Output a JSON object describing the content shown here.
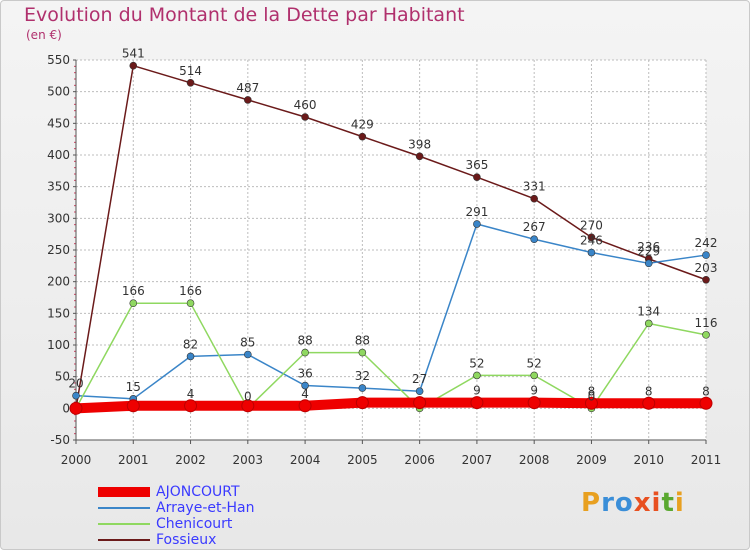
{
  "title": "Evolution du Montant de la Dette par Habitant",
  "unit_label": "(en €)",
  "logo": {
    "text": "Proxiti",
    "letters": [
      "P",
      "r",
      "o",
      "x",
      "i",
      "t",
      "i"
    ],
    "colors": [
      "#e8a020",
      "#3a8ed8",
      "#3a8ed8",
      "#e85020",
      "#e85020",
      "#5aa830",
      "#e8a020"
    ]
  },
  "chart_data": {
    "type": "line",
    "x": [
      "2000",
      "2001",
      "2002",
      "2003",
      "2004",
      "2005",
      "2006",
      "2007",
      "2008",
      "2009",
      "2010",
      "2011"
    ],
    "ylim": [
      -50,
      550
    ],
    "yticks": [
      -50,
      0,
      50,
      100,
      150,
      200,
      250,
      300,
      350,
      400,
      450,
      500,
      550
    ],
    "ytick_labels": [
      "-50",
      "0",
      "50",
      "100",
      "150",
      "200",
      "250",
      "300",
      "350",
      "400",
      "450",
      "500",
      "550"
    ],
    "grid": true,
    "legend_position": "bottom-left",
    "series": [
      {
        "name": "AJONCOURT",
        "color": "#ee0000",
        "values": [
          0,
          4,
          4,
          4,
          4,
          9,
          9,
          9,
          9,
          8,
          8,
          8
        ],
        "labels": [
          "",
          "",
          "4",
          "",
          "4",
          "",
          "",
          "9",
          "9",
          "8",
          "8",
          "8"
        ]
      },
      {
        "name": "Arraye-et-Han",
        "color": "#3a85c8",
        "values": [
          20,
          15,
          82,
          85,
          36,
          32,
          27,
          291,
          267,
          246,
          229,
          242
        ],
        "labels": [
          "20",
          "15",
          "82",
          "85",
          "36",
          "32",
          "27",
          "291",
          "267",
          "246",
          "229",
          "242"
        ]
      },
      {
        "name": "Chenicourt",
        "color": "#8fd860",
        "values": [
          0,
          166,
          166,
          0,
          88,
          88,
          0,
          52,
          52,
          0,
          134,
          116
        ],
        "labels": [
          "",
          "166",
          "166",
          "0",
          "88",
          "88",
          "",
          "52",
          "52",
          "0",
          "134",
          "116"
        ]
      },
      {
        "name": "Fossieux",
        "color": "#6b1a1a",
        "values": [
          0,
          541,
          514,
          487,
          460,
          429,
          398,
          365,
          331,
          270,
          236,
          203
        ],
        "labels": [
          "",
          "541",
          "514",
          "487",
          "460",
          "429",
          "398",
          "365",
          "331",
          "270",
          "236",
          "203"
        ]
      }
    ]
  }
}
